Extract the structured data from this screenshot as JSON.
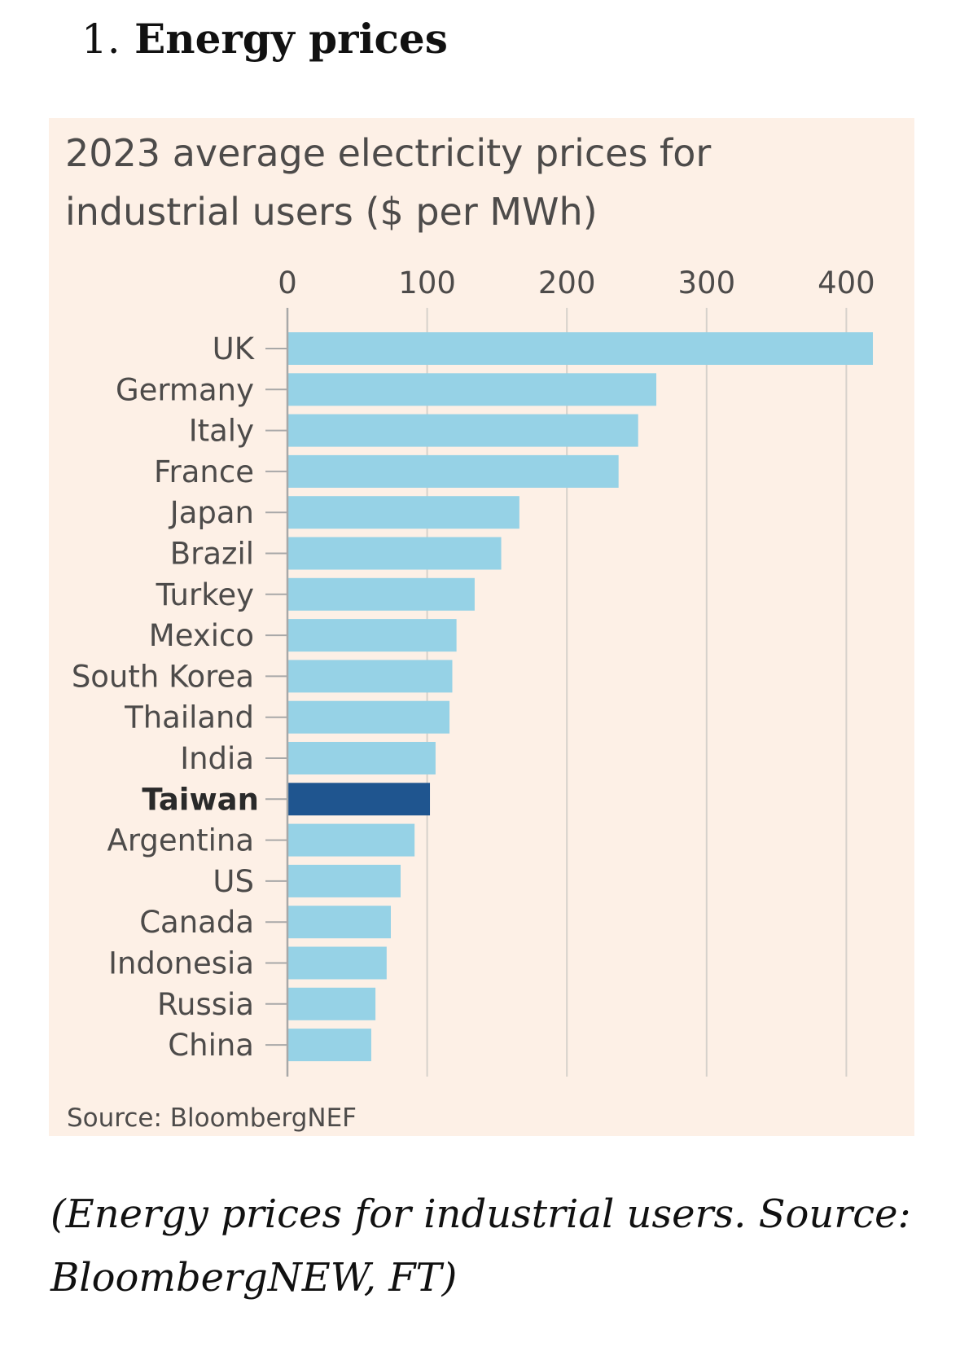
{
  "heading": {
    "number": "1.",
    "text": "Energy prices"
  },
  "chart_data": {
    "type": "bar",
    "orientation": "horizontal",
    "title_line1": "2023 average electricity prices for",
    "title_line2": "industrial users ($ per MWh)",
    "xlim": [
      0,
      420
    ],
    "ticks": [
      0,
      100,
      200,
      300,
      400
    ],
    "tick_labels": [
      "0",
      "100",
      "200",
      "300",
      "400"
    ],
    "categories": [
      "UK",
      "Germany",
      "Italy",
      "France",
      "Japan",
      "Brazil",
      "Turkey",
      "Mexico",
      "South Korea",
      "Thailand",
      "India",
      "Taiwan",
      "Argentina",
      "US",
      "Canada",
      "Indonesia",
      "Russia",
      "China"
    ],
    "values": [
      419,
      264,
      251,
      237,
      166,
      153,
      134,
      121,
      118,
      116,
      106,
      102,
      91,
      81,
      74,
      71,
      63,
      60
    ],
    "highlight": "Taiwan",
    "colors": {
      "bar": "#96d2e6",
      "highlight": "#1f558f",
      "grid": "#d6d1cb",
      "axis": "#a8a8a8",
      "label": "#4d4b4a",
      "highlight_label": "#2a2a2a",
      "background": "#fdf0e6"
    },
    "source": "Source: BloombergNEF"
  },
  "caption": {
    "line1": "(Energy prices for industrial users. Source:",
    "line2": "BloombergNEW, FT)"
  }
}
